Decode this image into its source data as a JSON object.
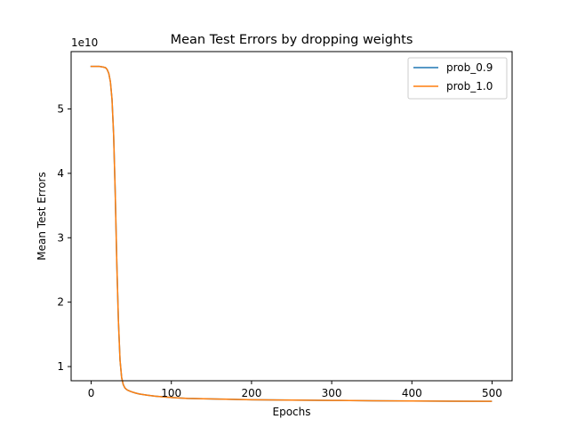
{
  "chart_data": {
    "type": "line",
    "title": "Mean Test Errors by dropping weights",
    "xlabel": "Epochs",
    "ylabel": "Mean Test Errors",
    "offset_text": "1e10",
    "x_scale": "linear",
    "y_scale": "linear",
    "xlim": [
      -25,
      525
    ],
    "ylim": [
      0.78,
      5.89
    ],
    "xticks": [
      0,
      100,
      200,
      300,
      400,
      500
    ],
    "xtick_labels": [
      "0",
      "100",
      "200",
      "300",
      "400",
      "500"
    ],
    "yticks": [
      1,
      2,
      3,
      4,
      5
    ],
    "ytick_labels": [
      "1",
      "2",
      "3",
      "4",
      "5"
    ],
    "grid": false,
    "legend_position": "top-right",
    "x": [
      0,
      5,
      10,
      15,
      18,
      20,
      22,
      24,
      26,
      28,
      30,
      32,
      34,
      36,
      38,
      40,
      42,
      44,
      46,
      48,
      50,
      55,
      60,
      70,
      80,
      90,
      100,
      120,
      140,
      160,
      180,
      200,
      250,
      300,
      350,
      400,
      450,
      499
    ],
    "series": [
      {
        "name": "prob_0.9",
        "color": "#1f77b4",
        "values": [
          5.66,
          5.66,
          5.66,
          5.65,
          5.64,
          5.61,
          5.55,
          5.42,
          5.15,
          4.6,
          3.7,
          2.6,
          1.7,
          1.1,
          0.83,
          0.72,
          0.67,
          0.645,
          0.63,
          0.62,
          0.61,
          0.59,
          0.575,
          0.555,
          0.54,
          0.53,
          0.52,
          0.505,
          0.5,
          0.495,
          0.49,
          0.485,
          0.48,
          0.475,
          0.47,
          0.465,
          0.462,
          0.46
        ]
      },
      {
        "name": "prob_1.0",
        "color": "#ff7f0e",
        "values": [
          5.66,
          5.66,
          5.66,
          5.65,
          5.64,
          5.61,
          5.55,
          5.42,
          5.15,
          4.6,
          3.7,
          2.6,
          1.7,
          1.1,
          0.83,
          0.72,
          0.67,
          0.645,
          0.63,
          0.62,
          0.61,
          0.59,
          0.575,
          0.555,
          0.54,
          0.53,
          0.52,
          0.505,
          0.5,
          0.495,
          0.49,
          0.485,
          0.48,
          0.475,
          0.47,
          0.465,
          0.462,
          0.46
        ]
      }
    ]
  }
}
